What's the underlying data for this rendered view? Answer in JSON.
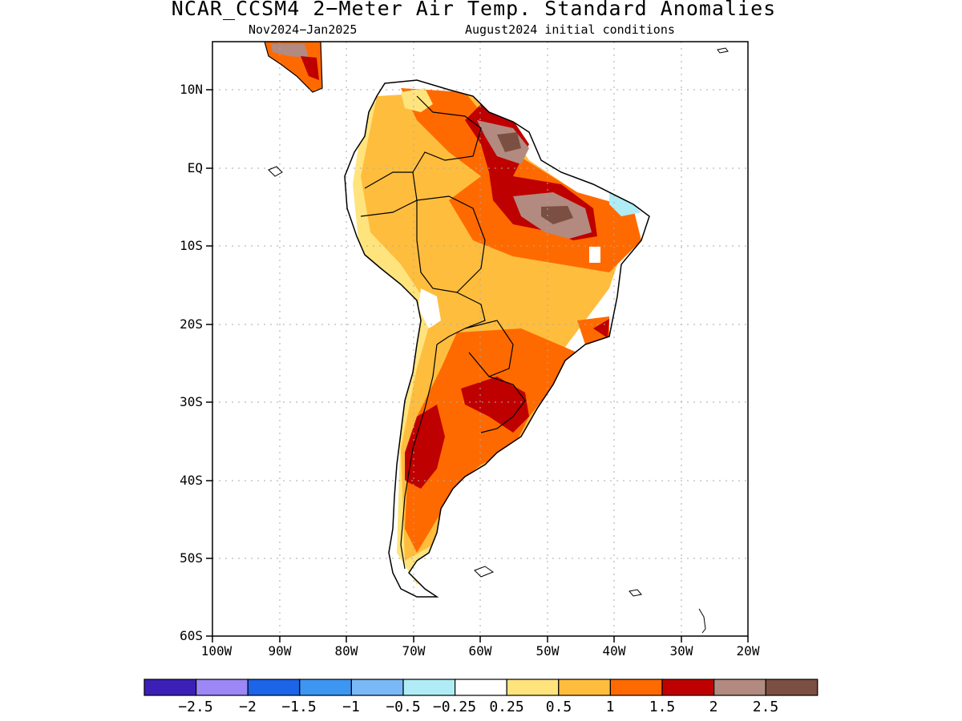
{
  "header": {
    "title": "NCAR_CCSM4 2−Meter Air Temp. Standard Anomalies",
    "period": "Nov2024−Jan2025",
    "init": "August2024 initial conditions"
  },
  "axes": {
    "lat_labels": [
      "10N",
      "EQ",
      "10S",
      "20S",
      "30S",
      "40S",
      "50S",
      "60S"
    ],
    "lon_labels": [
      "100W",
      "90W",
      "80W",
      "70W",
      "60W",
      "50W",
      "40W",
      "30W",
      "20W"
    ]
  },
  "colorbar": {
    "colors": [
      "#3b20b8",
      "#9b87f5",
      "#1c64e8",
      "#3c96f2",
      "#7ab9f7",
      "#b0ecf5",
      "#ffffff",
      "#ffe47e",
      "#ffbd3e",
      "#ff6a00",
      "#bf0000",
      "#b38a80",
      "#7b4f42"
    ],
    "labels": [
      "−2.5",
      "−2",
      "−1.5",
      "−1",
      "−0.5",
      "−0.25",
      "0.25",
      "0.5",
      "1",
      "1.5",
      "2",
      "2.5"
    ]
  },
  "map_data": {
    "region": "South America",
    "variable": "2-Meter Air Temperature standard anomaly",
    "lon_range": [
      -100,
      -20
    ],
    "lat_range": [
      -60,
      16
    ],
    "grid": true
  }
}
